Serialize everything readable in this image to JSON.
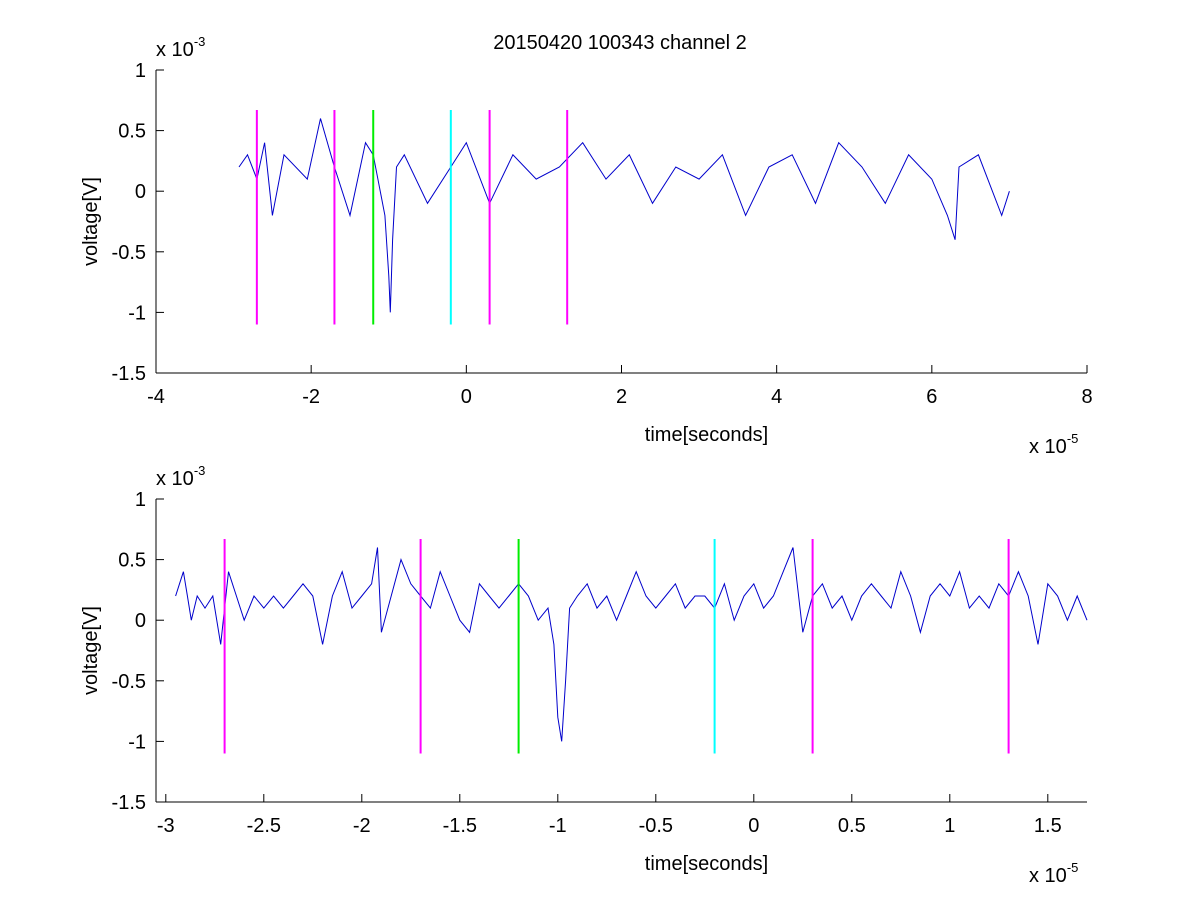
{
  "figure": {
    "title": "20150420 100343 channel 2"
  },
  "chart_data": [
    {
      "type": "line",
      "title": "20150420 100343 channel 2",
      "xlabel": "time[seconds]",
      "ylabel": "voltage[V]",
      "x_multiplier": {
        "base": "x 10",
        "exp": "-5"
      },
      "y_multiplier": {
        "base": "x 10",
        "exp": "-3"
      },
      "xlim": [
        -4,
        8
      ],
      "ylim": [
        -1.5,
        1
      ],
      "x_ticks": [
        -4,
        -2,
        0,
        2,
        4,
        6,
        8
      ],
      "x_tick_labels": [
        "-4",
        "-2",
        "0",
        "2",
        "4",
        "6",
        "8"
      ],
      "y_ticks": [
        -1.5,
        -1,
        -0.5,
        0,
        0.5,
        1
      ],
      "y_tick_labels": [
        "-1.5",
        "-1",
        "-0.5",
        "0",
        "0.5",
        "1"
      ],
      "grid": false,
      "series": [
        {
          "color": "#0000cc",
          "x": [
            -2.93,
            -2.82,
            -2.7,
            -2.6,
            -2.5,
            -2.35,
            -2.05,
            -1.88,
            -1.7,
            -1.5,
            -1.3,
            -1.2,
            -1.05,
            -1.0,
            -0.98,
            -0.95,
            -0.9,
            -0.8,
            -0.5,
            -0.2,
            0.0,
            0.3,
            0.6,
            0.9,
            1.2,
            1.5,
            1.8,
            2.1,
            2.4,
            2.7,
            3.0,
            3.3,
            3.6,
            3.9,
            4.2,
            4.5,
            4.8,
            5.1,
            5.4,
            5.7,
            6.0,
            6.2,
            6.3,
            6.35,
            6.6,
            6.9,
            7.0
          ],
          "y": [
            0.2,
            0.3,
            0.1,
            0.4,
            -0.2,
            0.3,
            0.1,
            0.6,
            0.2,
            -0.2,
            0.4,
            0.3,
            -0.2,
            -0.7,
            -1.0,
            -0.4,
            0.2,
            0.3,
            -0.1,
            0.2,
            0.4,
            -0.1,
            0.3,
            0.1,
            0.2,
            0.4,
            0.1,
            0.3,
            -0.1,
            0.2,
            0.1,
            0.3,
            -0.2,
            0.2,
            0.3,
            -0.1,
            0.4,
            0.2,
            -0.1,
            0.3,
            0.1,
            -0.2,
            -0.4,
            0.2,
            0.3,
            -0.2,
            0.0
          ]
        }
      ],
      "markers": [
        {
          "x": -2.7,
          "color": "#ff00ff"
        },
        {
          "x": -1.7,
          "color": "#ff00ff"
        },
        {
          "x": -1.2,
          "color": "#00ee00"
        },
        {
          "x": -0.2,
          "color": "#00ffff"
        },
        {
          "x": 0.3,
          "color": "#ff00ff"
        },
        {
          "x": 1.3,
          "color": "#ff00ff"
        }
      ],
      "marker_range": [
        -1.1,
        0.67
      ]
    },
    {
      "type": "line",
      "title": "",
      "xlabel": "time[seconds]",
      "ylabel": "voltage[V]",
      "x_multiplier": {
        "base": "x 10",
        "exp": "-5"
      },
      "y_multiplier": {
        "base": "x 10",
        "exp": "-3"
      },
      "xlim": [
        -3.05,
        1.7
      ],
      "ylim": [
        -1.5,
        1
      ],
      "x_ticks": [
        -3,
        -2.5,
        -2,
        -1.5,
        -1,
        -0.5,
        0,
        0.5,
        1,
        1.5
      ],
      "x_tick_labels": [
        "-3",
        "-2.5",
        "-2",
        "-1.5",
        "-1",
        "-0.5",
        "0",
        "0.5",
        "1",
        "1.5"
      ],
      "y_ticks": [
        -1.5,
        -1,
        -0.5,
        0,
        0.5,
        1
      ],
      "y_tick_labels": [
        "-1.5",
        "-1",
        "-0.5",
        "0",
        "0.5",
        "1"
      ],
      "grid": false,
      "series": [
        {
          "color": "#0000cc",
          "x": [
            -2.95,
            -2.93,
            -2.91,
            -2.89,
            -2.87,
            -2.84,
            -2.8,
            -2.76,
            -2.72,
            -2.68,
            -2.64,
            -2.6,
            -2.55,
            -2.5,
            -2.45,
            -2.4,
            -2.35,
            -2.3,
            -2.25,
            -2.2,
            -2.15,
            -2.1,
            -2.05,
            -2.0,
            -1.95,
            -1.92,
            -1.9,
            -1.85,
            -1.8,
            -1.75,
            -1.7,
            -1.65,
            -1.6,
            -1.55,
            -1.5,
            -1.45,
            -1.4,
            -1.35,
            -1.3,
            -1.25,
            -1.2,
            -1.15,
            -1.1,
            -1.05,
            -1.02,
            -1.0,
            -0.98,
            -0.96,
            -0.94,
            -0.9,
            -0.85,
            -0.8,
            -0.75,
            -0.7,
            -0.65,
            -0.6,
            -0.55,
            -0.5,
            -0.45,
            -0.4,
            -0.35,
            -0.3,
            -0.25,
            -0.2,
            -0.15,
            -0.1,
            -0.05,
            0.0,
            0.05,
            0.1,
            0.15,
            0.2,
            0.25,
            0.3,
            0.35,
            0.4,
            0.45,
            0.5,
            0.55,
            0.6,
            0.65,
            0.7,
            0.75,
            0.8,
            0.85,
            0.9,
            0.95,
            1.0,
            1.05,
            1.1,
            1.15,
            1.2,
            1.25,
            1.3,
            1.35,
            1.4,
            1.45,
            1.5,
            1.55,
            1.6,
            1.65,
            1.7
          ],
          "y": [
            0.2,
            0.3,
            0.4,
            0.2,
            0.0,
            0.2,
            0.1,
            0.2,
            -0.2,
            0.4,
            0.2,
            0.0,
            0.2,
            0.1,
            0.2,
            0.1,
            0.2,
            0.3,
            0.2,
            -0.2,
            0.2,
            0.4,
            0.1,
            0.2,
            0.3,
            0.6,
            -0.1,
            0.2,
            0.5,
            0.3,
            0.2,
            0.1,
            0.4,
            0.2,
            0.0,
            -0.1,
            0.3,
            0.2,
            0.1,
            0.2,
            0.3,
            0.2,
            0.0,
            0.1,
            -0.2,
            -0.8,
            -1.0,
            -0.5,
            0.1,
            0.2,
            0.3,
            0.1,
            0.2,
            0.0,
            0.2,
            0.4,
            0.2,
            0.1,
            0.2,
            0.3,
            0.1,
            0.2,
            0.2,
            0.1,
            0.3,
            0.0,
            0.2,
            0.3,
            0.1,
            0.2,
            0.4,
            0.6,
            -0.1,
            0.2,
            0.3,
            0.1,
            0.2,
            0.0,
            0.2,
            0.3,
            0.2,
            0.1,
            0.4,
            0.2,
            -0.1,
            0.2,
            0.3,
            0.2,
            0.4,
            0.1,
            0.2,
            0.1,
            0.3,
            0.2,
            0.4,
            0.2,
            -0.2,
            0.3,
            0.2,
            0.0,
            0.2,
            0.0
          ]
        }
      ],
      "markers": [
        {
          "x": -2.7,
          "color": "#ff00ff"
        },
        {
          "x": -1.7,
          "color": "#ff00ff"
        },
        {
          "x": -1.2,
          "color": "#00ee00"
        },
        {
          "x": -0.2,
          "color": "#00ffff"
        },
        {
          "x": 0.3,
          "color": "#ff00ff"
        },
        {
          "x": 1.3,
          "color": "#ff00ff"
        }
      ],
      "marker_range": [
        -1.1,
        0.67
      ]
    }
  ]
}
